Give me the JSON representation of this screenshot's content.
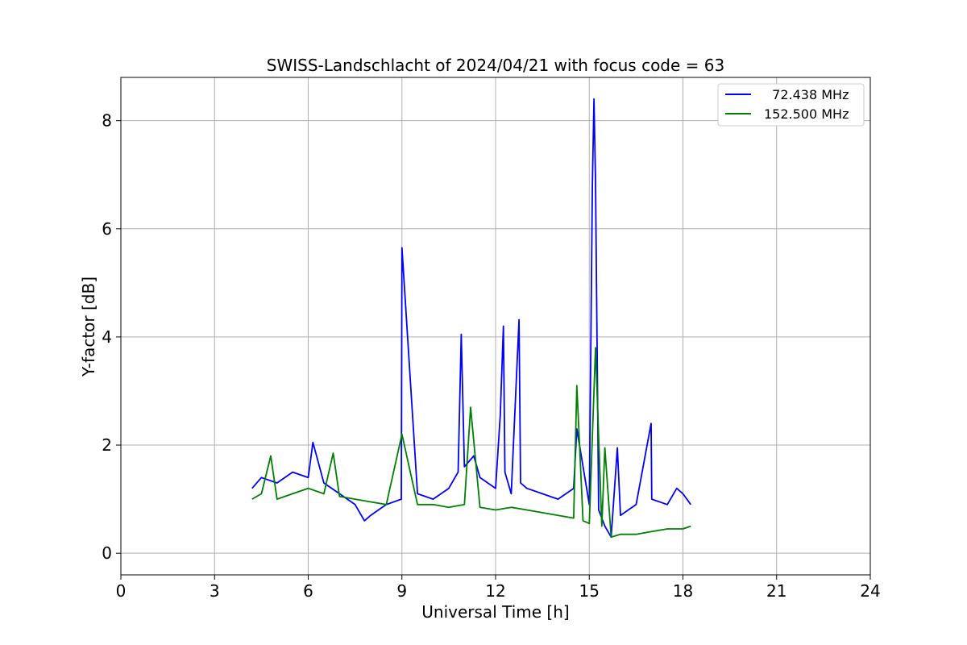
{
  "chart_data": {
    "type": "line",
    "title": "SWISS-Landschlacht of 2024/04/21 with focus code = 63",
    "xlabel": "Universal Time [h]",
    "ylabel": "Y-factor [dB]",
    "xlim": [
      0,
      24
    ],
    "ylim": [
      -0.4,
      8.8
    ],
    "x_ticks": [
      0,
      3,
      6,
      9,
      12,
      15,
      18,
      21,
      24
    ],
    "x_tick_labels": [
      "0",
      "3",
      "6",
      "9",
      "12",
      "15",
      "18",
      "21",
      "24"
    ],
    "y_ticks": [
      0,
      2,
      4,
      6,
      8
    ],
    "y_tick_labels": [
      "0",
      "2",
      "4",
      "6",
      "8"
    ],
    "grid": true,
    "legend_position": "top-right",
    "series": [
      {
        "name": "  72.438 MHz",
        "color": "#0000ff",
        "x": [
          4.2,
          4.5,
          5.0,
          5.5,
          6.0,
          6.15,
          6.5,
          7.0,
          7.5,
          7.8,
          8.0,
          8.5,
          8.98,
          9.0,
          9.5,
          10.0,
          10.5,
          10.8,
          10.9,
          11.0,
          11.3,
          11.5,
          12.0,
          12.15,
          12.25,
          12.3,
          12.5,
          12.75,
          12.8,
          13.0,
          13.5,
          14.0,
          14.5,
          14.6,
          15.0,
          15.1,
          15.15,
          15.2,
          15.3,
          15.5,
          15.7,
          15.9,
          16.0,
          16.5,
          16.98,
          17.0,
          17.5,
          17.8,
          18.0,
          18.25
        ],
        "y": [
          1.2,
          1.4,
          1.3,
          1.5,
          1.4,
          2.05,
          1.3,
          1.1,
          0.9,
          0.6,
          0.7,
          0.9,
          1.0,
          5.65,
          1.1,
          1.0,
          1.2,
          1.5,
          4.05,
          1.6,
          1.8,
          1.4,
          1.2,
          2.55,
          4.2,
          1.5,
          1.1,
          4.32,
          1.3,
          1.2,
          1.1,
          1.0,
          1.2,
          2.3,
          0.9,
          6.8,
          8.4,
          6.9,
          0.8,
          0.5,
          0.3,
          1.95,
          0.7,
          0.9,
          2.4,
          1.0,
          0.9,
          1.2,
          1.1,
          0.9
        ]
      },
      {
        "name": "152.500 MHz",
        "color": "#008000",
        "x": [
          4.2,
          4.5,
          4.8,
          5.0,
          5.5,
          6.0,
          6.5,
          6.8,
          7.0,
          7.5,
          8.0,
          8.5,
          9.0,
          9.5,
          10.0,
          10.5,
          11.0,
          11.2,
          11.5,
          12.0,
          12.5,
          13.0,
          13.5,
          14.0,
          14.5,
          14.6,
          14.8,
          15.0,
          15.2,
          15.4,
          15.5,
          15.7,
          16.0,
          16.5,
          17.0,
          17.5,
          18.0,
          18.25
        ],
        "y": [
          1.0,
          1.1,
          1.8,
          1.0,
          1.1,
          1.2,
          1.1,
          1.85,
          1.05,
          1.0,
          0.95,
          0.9,
          2.2,
          0.9,
          0.9,
          0.85,
          0.9,
          2.7,
          0.85,
          0.8,
          0.85,
          0.8,
          0.75,
          0.7,
          0.65,
          3.1,
          0.6,
          0.55,
          3.8,
          0.5,
          1.95,
          0.3,
          0.35,
          0.35,
          0.4,
          0.45,
          0.45,
          0.5
        ]
      }
    ]
  }
}
